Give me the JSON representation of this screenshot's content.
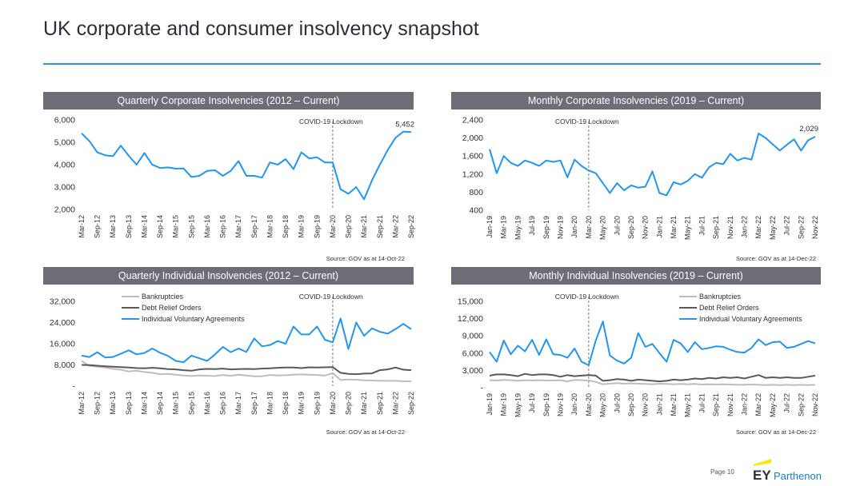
{
  "page": {
    "title": "UK corporate and consumer insolvency snapshot",
    "page_label": "Page 10",
    "logo": {
      "mark": "EY",
      "text": "Parthenon"
    }
  },
  "colors": {
    "accent": "#2f8fd8",
    "header_bg": "#6d6d78",
    "line_blue": "#2196f3",
    "line_grey_light": "#bdbdbd",
    "line_grey_dark": "#595959",
    "logo_yellow": "#ffe600"
  },
  "chart_data": [
    {
      "id": "qc",
      "type": "line",
      "title": "Quarterly Corporate Insolvencies (2012 – Current)",
      "source": "Source: GOV as at 14-Oct-22",
      "annotation": "COVID-19 Lockdown",
      "annotation_index": 32,
      "end_label": "5,452",
      "ylim": [
        2000,
        6000
      ],
      "yticks": [
        2000,
        3000,
        4000,
        5000,
        6000
      ],
      "ytick_labels": [
        "2,000",
        "3,000",
        "4,000",
        "5,000",
        "6,000"
      ],
      "xtick_labels": [
        "Mar-12",
        "Sep-12",
        "Mar-13",
        "Sep-13",
        "Mar-14",
        "Sep-14",
        "Mar-15",
        "Sep-15",
        "Mar-16",
        "Sep-16",
        "Mar-17",
        "Sep-17",
        "Mar-18",
        "Sep-18",
        "Mar-19",
        "Sep-19",
        "Mar-20",
        "Sep-20",
        "Mar-21",
        "Sep-21",
        "Mar-22",
        "Sep-22"
      ],
      "n": 43,
      "series": [
        {
          "name": "Corporate insolvencies",
          "color": "#2196f3",
          "values": [
            5400,
            5050,
            4550,
            4420,
            4380,
            4850,
            4400,
            4000,
            4520,
            4000,
            3850,
            3880,
            3820,
            3830,
            3450,
            3500,
            3720,
            3750,
            3500,
            3720,
            4160,
            3500,
            3500,
            3420,
            4100,
            4000,
            4250,
            3800,
            4550,
            4280,
            4330,
            4100,
            4100,
            2900,
            2700,
            3000,
            2450,
            3300,
            4000,
            4650,
            5200,
            5480,
            5452
          ]
        }
      ]
    },
    {
      "id": "mc",
      "type": "line",
      "title": "Monthly Corporate Insolvencies (2019 – Current)",
      "source": "Source: GOV as at 14-Dec-22",
      "annotation": "COVID-19 Lockdown",
      "annotation_index": 14,
      "end_label": "2,029",
      "ylim": [
        400,
        2400
      ],
      "yticks": [
        400,
        800,
        1200,
        1600,
        2000,
        2400
      ],
      "ytick_labels": [
        "400",
        "800",
        "1,200",
        "1,600",
        "2,000",
        "2,400"
      ],
      "xtick_labels": [
        "Jan-19",
        "Mar-19",
        "May-19",
        "Jul-19",
        "Sep-19",
        "Nov-19",
        "Jan-20",
        "Mar-20",
        "May-20",
        "Jul-20",
        "Sep-20",
        "Nov-20",
        "Jan-21",
        "Mar-21",
        "May-21",
        "Jul-21",
        "Sep-21",
        "Nov-21",
        "Jan-22",
        "Mar-22",
        "May-22",
        "Jul-22",
        "Sep-22",
        "Nov-22"
      ],
      "n": 47,
      "series": [
        {
          "name": "Corporate insolvencies",
          "color": "#2196f3",
          "values": [
            1750,
            1220,
            1600,
            1450,
            1380,
            1500,
            1450,
            1380,
            1500,
            1470,
            1500,
            1130,
            1520,
            1380,
            1280,
            1220,
            1000,
            780,
            1000,
            840,
            950,
            900,
            920,
            1260,
            780,
            730,
            1020,
            970,
            1050,
            1200,
            1120,
            1350,
            1450,
            1420,
            1650,
            1500,
            1560,
            1520,
            2100,
            2000,
            1860,
            1720,
            1850,
            1970,
            1720,
            1950,
            2029
          ]
        }
      ]
    },
    {
      "id": "qi",
      "type": "line",
      "title": "Quarterly Individual Insolvencies (2012 – Current)",
      "source": "Source: GOV as at 14-Oct-22",
      "annotation": "COVID-19 Lockdown",
      "annotation_index": 32,
      "ylim": [
        0,
        32000
      ],
      "yticks": [
        0,
        8000,
        16000,
        24000,
        32000
      ],
      "ytick_labels": [
        "-",
        "8,000",
        "16,000",
        "24,000",
        "32,000"
      ],
      "xtick_labels": [
        "Mar-12",
        "Sep-12",
        "Mar-13",
        "Sep-13",
        "Mar-14",
        "Sep-14",
        "Mar-15",
        "Sep-15",
        "Mar-16",
        "Sep-16",
        "Mar-17",
        "Sep-17",
        "Mar-18",
        "Sep-18",
        "Mar-19",
        "Sep-19",
        "Mar-20",
        "Sep-20",
        "Mar-21",
        "Sep-21",
        "Mar-22",
        "Sep-22"
      ],
      "legend": [
        "Bankruptcies",
        "Debt Relief Orders",
        "Individual Voluntary Agreements"
      ],
      "n": 43,
      "series": [
        {
          "name": "Bankruptcies",
          "color": "#bdbdbd",
          "values": [
            9500,
            7600,
            7300,
            7000,
            6500,
            6200,
            5500,
            5800,
            5300,
            5000,
            4500,
            4600,
            4300,
            4000,
            3800,
            4000,
            3900,
            3800,
            4200,
            3900,
            4300,
            4000,
            3700,
            3700,
            4200,
            4000,
            4100,
            4300,
            4400,
            4300,
            4200,
            4000,
            4900,
            2300,
            2500,
            2400,
            2200,
            2100,
            2000,
            2000,
            2000,
            1800,
            1800
          ]
        },
        {
          "name": "Debt Relief Orders",
          "color": "#595959",
          "values": [
            8000,
            7900,
            7700,
            7500,
            7300,
            7200,
            7000,
            6800,
            6700,
            6900,
            6700,
            6400,
            6300,
            6000,
            5800,
            6300,
            6500,
            6400,
            6600,
            6300,
            6400,
            6500,
            6400,
            6600,
            6700,
            6900,
            7000,
            7000,
            6800,
            7100,
            7000,
            7100,
            7200,
            5000,
            4600,
            4500,
            4700,
            4800,
            6000,
            6300,
            7000,
            6200,
            6000
          ]
        },
        {
          "name": "Individual Voluntary Agreements",
          "color": "#2196f3",
          "values": [
            11500,
            11000,
            12800,
            10800,
            11000,
            12200,
            13500,
            12000,
            12500,
            14200,
            12600,
            11400,
            9500,
            9000,
            11500,
            10500,
            9500,
            12000,
            14800,
            12800,
            14200,
            12900,
            18000,
            15000,
            15500,
            17000,
            16000,
            22500,
            19500,
            19500,
            22500,
            17500,
            16500,
            25500,
            14000,
            24000,
            19000,
            21800,
            20500,
            19800,
            21500,
            23500,
            21500
          ]
        }
      ]
    },
    {
      "id": "mi",
      "type": "line",
      "title": "Monthly Individual Insolvencies (2019 – Current)",
      "source": "Source: GOV as at 14-Dec-22",
      "annotation": "COVID-19 Lockdown",
      "annotation_index": 14,
      "ylim": [
        0,
        15000
      ],
      "yticks": [
        0,
        3000,
        6000,
        9000,
        12000,
        15000
      ],
      "ytick_labels": [
        "-",
        "3,000",
        "6,000",
        "9,000",
        "12,000",
        "15,000"
      ],
      "xtick_labels": [
        "Jan-19",
        "Mar-19",
        "May-19",
        "Jul-19",
        "Sep-19",
        "Nov-19",
        "Jan-20",
        "Mar-20",
        "May-20",
        "Jul-20",
        "Sep-20",
        "Nov-20",
        "Jan-21",
        "Mar-21",
        "May-21",
        "Jul-21",
        "Sep-21",
        "Nov-21",
        "Jan-22",
        "Mar-22",
        "May-22",
        "Jul-22",
        "Sep-22",
        "Nov-22"
      ],
      "legend": [
        "Bankruptcies",
        "Debt Relief Orders",
        "Individual Voluntary Agreements"
      ],
      "n": 47,
      "series": [
        {
          "name": "Bankruptcies",
          "color": "#bdbdbd",
          "values": [
            1300,
            1250,
            1350,
            1300,
            1200,
            1300,
            1250,
            1300,
            1250,
            1250,
            1300,
            1100,
            1350,
            1300,
            1250,
            1000,
            600,
            700,
            800,
            700,
            750,
            700,
            650,
            600,
            700,
            650,
            600,
            650,
            600,
            650,
            550,
            600,
            550,
            600,
            550,
            500,
            500,
            550,
            500,
            450,
            500,
            450,
            500,
            450,
            500,
            450,
            500
          ]
        },
        {
          "name": "Debt Relief Orders",
          "color": "#595959",
          "values": [
            2100,
            2300,
            2300,
            2200,
            2000,
            2400,
            2200,
            2300,
            2300,
            2200,
            1900,
            2200,
            2000,
            2100,
            2200,
            2100,
            1200,
            1300,
            1500,
            1400,
            1200,
            1400,
            1300,
            1200,
            1100,
            1200,
            1400,
            1300,
            1400,
            1600,
            1500,
            1700,
            1600,
            1800,
            1700,
            1800,
            1600,
            1900,
            2200,
            1700,
            1800,
            1700,
            1800,
            1700,
            1700,
            1900,
            2100
          ]
        },
        {
          "name": "Individual Voluntary Agreements",
          "color": "#2196f3",
          "values": [
            6200,
            4500,
            8200,
            5800,
            7300,
            6300,
            8300,
            5700,
            8400,
            5800,
            5700,
            5200,
            6800,
            4500,
            3900,
            8200,
            11500,
            5600,
            4700,
            4200,
            5200,
            9500,
            7100,
            7600,
            6000,
            4500,
            8300,
            7700,
            6200,
            7900,
            6700,
            6900,
            7200,
            7100,
            6600,
            6200,
            6100,
            6900,
            8400,
            7400,
            7900,
            8000,
            6900,
            7100,
            7600,
            8100,
            7700
          ]
        }
      ]
    }
  ]
}
